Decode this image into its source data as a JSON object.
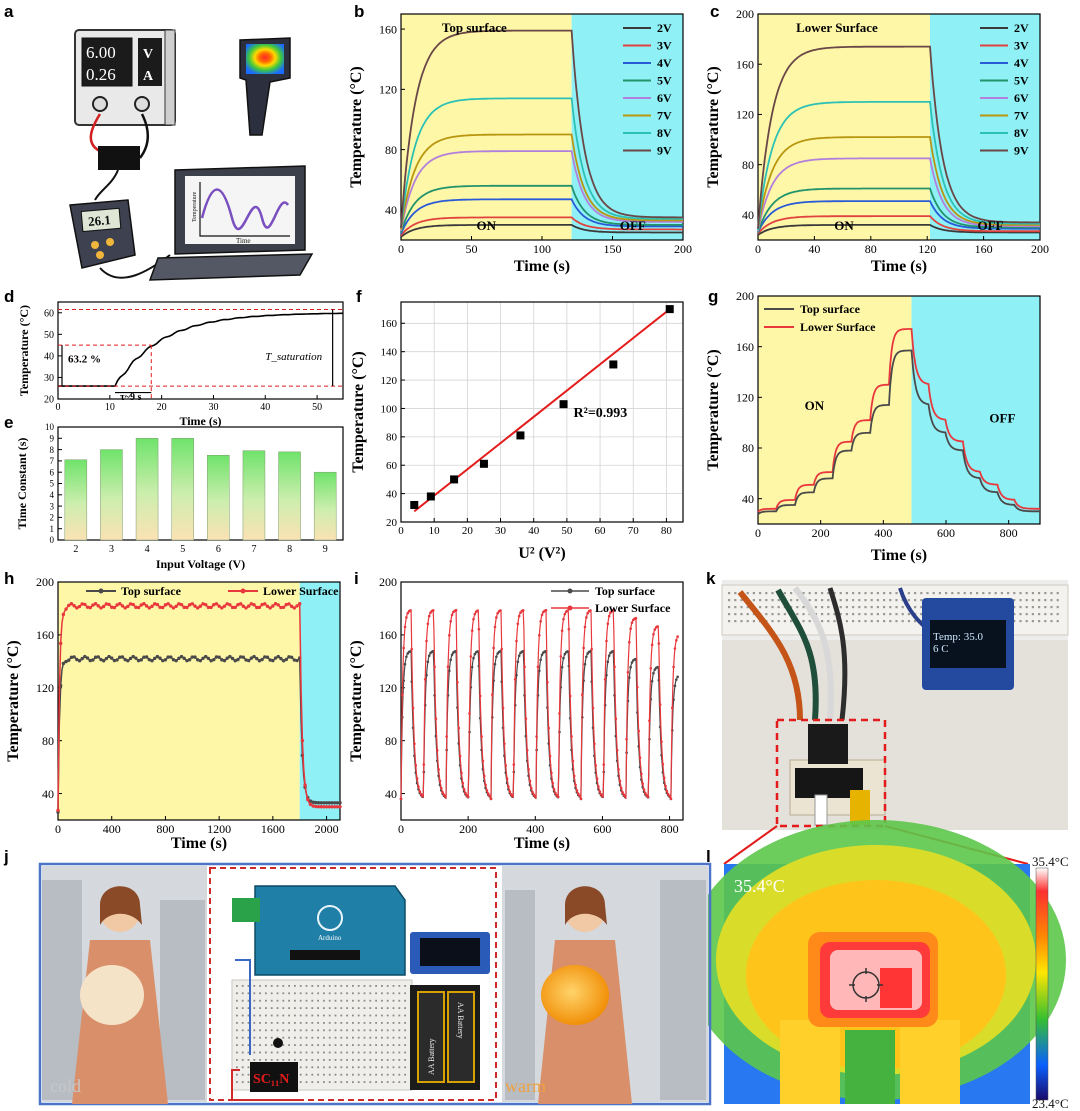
{
  "panel_labels": {
    "a": "a",
    "b": "b",
    "c": "c",
    "d": "d",
    "e": "e",
    "f": "f",
    "g": "g",
    "h": "h",
    "i": "i",
    "j": "j",
    "k": "k",
    "l": "l"
  },
  "colors": {
    "on_bg": "#fff7a8",
    "off_bg": "#8ff0f5",
    "top": "#4a4a4a",
    "lower": "#e8383d",
    "v2": "#3a3a3a",
    "v3": "#e0433f",
    "v4": "#2a5bd7",
    "v5": "#22936b",
    "v6": "#b27fdc",
    "v7": "#b9960f",
    "v8": "#2cc1b5",
    "v9": "#6a4747",
    "fit": "#e31b1b"
  },
  "panel_a": {
    "supply_voltage": "6.00",
    "supply_voltage_unit": "V",
    "supply_current": "0.26",
    "supply_current_unit": "A",
    "thermometer_reading": "26.1",
    "laptop_ylabel": "Temperature",
    "laptop_xlabel": "Time",
    "icons": [
      "power-supply-icon",
      "thermal-camera-icon",
      "digital-thermometer-icon",
      "laptop-icon"
    ]
  },
  "panel_k": {
    "oled_line1": "Temp: 35.0",
    "oled_line2": "6 C"
  },
  "panel_l": {
    "max_label": "35.4°C",
    "min_label": "23.4°C",
    "spot_label": "35.4°C"
  },
  "panel_j": {
    "left_caption": "cold",
    "right_caption": "warm",
    "chip_label": "SC₁₁N",
    "battery_label_1": "AA Battery",
    "battery_label_2": "AA Battery",
    "board_label": "Arduino"
  },
  "chart_data": [
    {
      "id": "b",
      "type": "line",
      "title": "Top surface",
      "xlabel": "Time (s)",
      "ylabel": "Temperature (°C)",
      "xlim": [
        0,
        200
      ],
      "ylim": [
        20,
        170
      ],
      "xticks": [
        0,
        50,
        100,
        150,
        200
      ],
      "yticks": [
        40,
        80,
        120,
        160
      ],
      "regions": [
        {
          "label": "ON",
          "x": [
            0,
            121
          ]
        },
        {
          "label": "OFF",
          "x": [
            121,
            200
          ]
        }
      ],
      "legend": "top-right",
      "heat_end": 121,
      "series": [
        {
          "name": "2V",
          "key": "v2",
          "start": 22,
          "plateau": 30,
          "end": 25
        },
        {
          "name": "3V",
          "key": "v3",
          "start": 23,
          "plateau": 35,
          "end": 27
        },
        {
          "name": "4V",
          "key": "v4",
          "start": 24,
          "plateau": 47,
          "end": 29
        },
        {
          "name": "5V",
          "key": "v5",
          "start": 25,
          "plateau": 56,
          "end": 30
        },
        {
          "name": "6V",
          "key": "v6",
          "start": 26,
          "plateau": 79,
          "end": 32
        },
        {
          "name": "7V",
          "key": "v7",
          "start": 27,
          "plateau": 90,
          "end": 33
        },
        {
          "name": "8V",
          "key": "v8",
          "start": 28,
          "plateau": 114,
          "end": 34
        },
        {
          "name": "9V",
          "key": "v9",
          "start": 28,
          "plateau": 159,
          "end": 35
        }
      ]
    },
    {
      "id": "c",
      "type": "line",
      "title": "Lower Surface",
      "xlabel": "Time (s)",
      "ylabel": "Temperature (°C)",
      "xlim": [
        0,
        200
      ],
      "ylim": [
        20,
        200
      ],
      "xticks": [
        0,
        40,
        80,
        120,
        160,
        200
      ],
      "yticks": [
        40,
        80,
        120,
        160,
        200
      ],
      "regions": [
        {
          "label": "ON",
          "x": [
            0,
            122
          ]
        },
        {
          "label": "OFF",
          "x": [
            122,
            200
          ]
        }
      ],
      "legend": "top-right",
      "heat_end": 122,
      "series": [
        {
          "name": "2V",
          "key": "v2",
          "start": 24,
          "plateau": 32,
          "end": 26
        },
        {
          "name": "3V",
          "key": "v3",
          "start": 25,
          "plateau": 39,
          "end": 27
        },
        {
          "name": "4V",
          "key": "v4",
          "start": 26,
          "plateau": 51,
          "end": 29
        },
        {
          "name": "5V",
          "key": "v5",
          "start": 26,
          "plateau": 61,
          "end": 30
        },
        {
          "name": "6V",
          "key": "v6",
          "start": 27,
          "plateau": 85,
          "end": 31
        },
        {
          "name": "7V",
          "key": "v7",
          "start": 28,
          "plateau": 102,
          "end": 32
        },
        {
          "name": "8V",
          "key": "v8",
          "start": 28,
          "plateau": 130,
          "end": 33
        },
        {
          "name": "9V",
          "key": "v9",
          "start": 29,
          "plateau": 174,
          "end": 34
        }
      ]
    },
    {
      "id": "d",
      "type": "line",
      "xlabel": "Time (s)",
      "ylabel": "Temperature (°C)",
      "xlim": [
        0,
        55
      ],
      "ylim": [
        20,
        65
      ],
      "xticks": [
        0,
        10,
        20,
        30,
        40,
        50
      ],
      "yticks": [
        20,
        30,
        40,
        50,
        60
      ],
      "annotations": [
        "63.2 %",
        "τ~9 s",
        "T_saturation"
      ],
      "t_on": 11,
      "baseline": 26,
      "saturation": 60,
      "tau": 9,
      "time_constant_level": 45
    },
    {
      "id": "e",
      "type": "bar",
      "xlabel": "Input Voltage (V)",
      "ylabel": "Time Constant (s)",
      "ylim": [
        0,
        10
      ],
      "yticks": [
        0,
        1,
        2,
        3,
        4,
        5,
        6,
        7,
        8,
        9,
        10
      ],
      "categories": [
        "2",
        "3",
        "4",
        "5",
        "6",
        "7",
        "8",
        "9"
      ],
      "values": [
        7.1,
        8.0,
        9.0,
        9.0,
        7.5,
        7.9,
        7.8,
        6.0
      ]
    },
    {
      "id": "f",
      "type": "scatter",
      "xlabel": "U² (V²)",
      "ylabel": "Temperature (°C)",
      "xlim": [
        0,
        85
      ],
      "ylim": [
        20,
        175
      ],
      "xticks": [
        0,
        10,
        20,
        30,
        40,
        50,
        60,
        70,
        80
      ],
      "yticks": [
        20,
        40,
        60,
        80,
        100,
        120,
        140,
        160
      ],
      "x": [
        4,
        9,
        16,
        25,
        36,
        49,
        64,
        81
      ],
      "y": [
        32,
        38,
        50,
        61,
        81,
        103,
        131,
        170
      ],
      "fit": {
        "slope": 1.85,
        "intercept": 20.1,
        "x": [
          4,
          81
        ],
        "label": "R²=0.993"
      }
    },
    {
      "id": "g",
      "type": "line",
      "xlabel": "Time (s)",
      "ylabel": "Temperature (°C)",
      "xlim": [
        0,
        900
      ],
      "ylim": [
        20,
        200
      ],
      "xticks": [
        0,
        200,
        400,
        600,
        800
      ],
      "yticks": [
        40,
        80,
        120,
        160,
        200
      ],
      "regions": [
        {
          "label": "ON",
          "x": [
            0,
            490
          ]
        },
        {
          "label": "OFF",
          "x": [
            490,
            900
          ]
        }
      ],
      "legend": "top-left",
      "step_levels_top": [
        30,
        35,
        45,
        56,
        78,
        92,
        114,
        157
      ],
      "step_levels_lower": [
        32,
        39,
        51,
        61,
        85,
        102,
        130,
        174
      ],
      "series": [
        {
          "name": "Top surface",
          "key": "top"
        },
        {
          "name": "Lower Surface",
          "key": "lower"
        }
      ]
    },
    {
      "id": "h",
      "type": "line",
      "xlabel": "Time (s)",
      "ylabel": "Temperature (°C)",
      "xlim": [
        0,
        2100
      ],
      "ylim": [
        20,
        200
      ],
      "xticks": [
        0,
        400,
        800,
        1200,
        1600,
        2000
      ],
      "yticks": [
        40,
        80,
        120,
        160,
        200
      ],
      "regions": [
        {
          "x": [
            0,
            1800
          ]
        },
        {
          "x": [
            1800,
            2100
          ]
        }
      ],
      "legend": "top",
      "series": [
        {
          "name": "Top surface",
          "key": "top",
          "plateau": 142,
          "end": 33
        },
        {
          "name": "Lower Surface",
          "key": "lower",
          "plateau": 182,
          "end": 30
        }
      ]
    },
    {
      "id": "i",
      "type": "line",
      "xlabel": "Time (s)",
      "ylabel": "Temperature (°C)",
      "xlim": [
        0,
        840
      ],
      "ylim": [
        20,
        200
      ],
      "xticks": [
        0,
        200,
        400,
        600,
        800
      ],
      "yticks": [
        40,
        80,
        120,
        160,
        200
      ],
      "legend": "top-right",
      "cycles": 12,
      "period": 67,
      "series": [
        {
          "name": "Top surface",
          "key": "top",
          "peak": 148,
          "min": 36
        },
        {
          "name": "Lower Surface",
          "key": "lower",
          "peak": 179,
          "min": 36
        }
      ]
    }
  ]
}
